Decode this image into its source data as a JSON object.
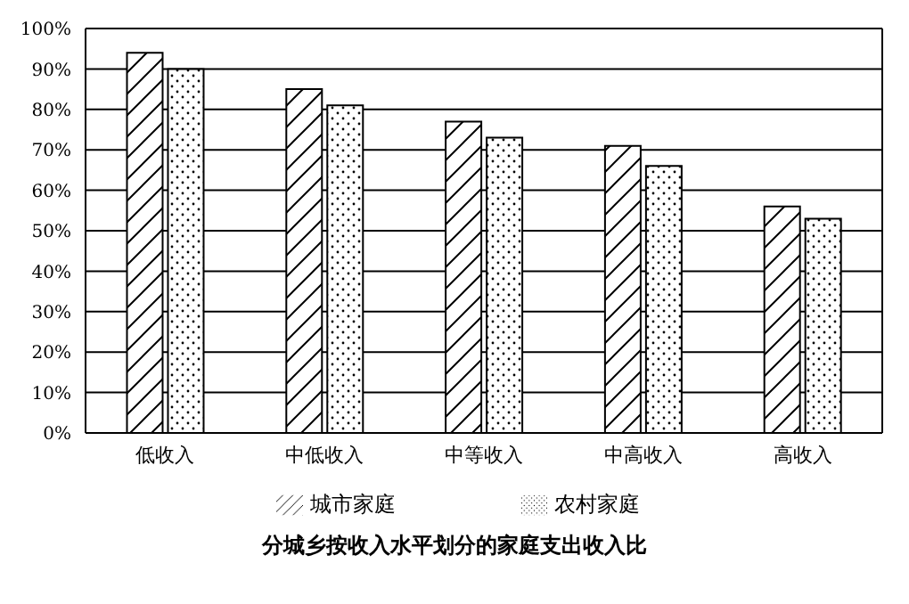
{
  "chart_data": {
    "type": "bar",
    "title": "分城乡按收入水平划分的家庭支出收入比",
    "categories": [
      "低收入",
      "中低收入",
      "中等收入",
      "中高收入",
      "高收入"
    ],
    "series": [
      {
        "name": "城市家庭",
        "color": "#000000",
        "values": [
          94,
          85,
          77,
          71,
          56
        ]
      },
      {
        "name": "农村家庭",
        "color": "#000000",
        "values": [
          90,
          81,
          73,
          66,
          53
        ]
      }
    ],
    "ylim": [
      0,
      100
    ],
    "yticks": [
      {
        "value": 0,
        "label": "0%"
      },
      {
        "value": 10,
        "label": "10%"
      },
      {
        "value": 20,
        "label": "20%"
      },
      {
        "value": 30,
        "label": "30%"
      },
      {
        "value": 40,
        "label": "40%"
      },
      {
        "value": 50,
        "label": "50%"
      },
      {
        "value": 60,
        "label": "60%"
      },
      {
        "value": 70,
        "label": "70%"
      },
      {
        "value": 80,
        "label": "80%"
      },
      {
        "value": 90,
        "label": "90%"
      },
      {
        "value": 100,
        "label": "100%"
      }
    ],
    "grid": "y",
    "legend": "bottom"
  }
}
